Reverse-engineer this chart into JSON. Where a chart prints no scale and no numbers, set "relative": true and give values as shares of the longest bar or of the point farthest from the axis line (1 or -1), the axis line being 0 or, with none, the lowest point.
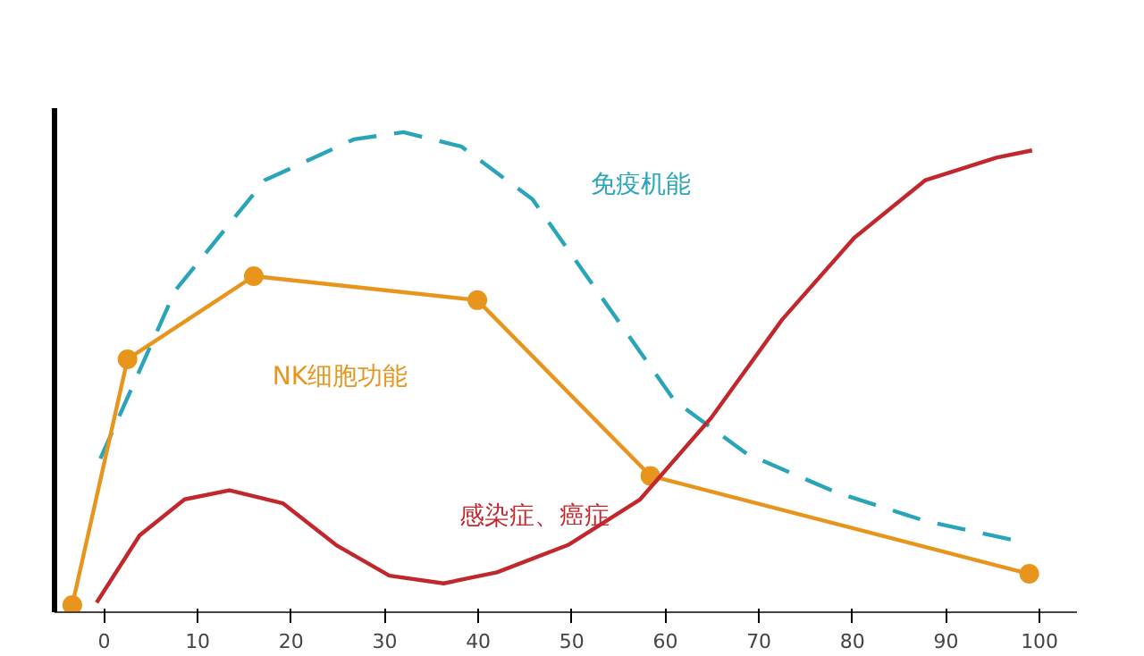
{
  "chart_data": {
    "type": "line",
    "relative": true,
    "xlim": [
      -5.3,
      104
    ],
    "xticks": [
      0,
      10,
      20,
      30,
      40,
      50,
      60,
      70,
      80,
      90,
      100
    ],
    "grid": false,
    "series": [
      {
        "name": "免疫机能",
        "color": "#2aa4b8",
        "line_style": "dashed",
        "marker": "none",
        "x": [
          -0.4,
          7.6,
          17.2,
          26.7,
          32,
          38.2,
          45.8,
          53.4,
          61,
          68.7,
          78.2,
          87.8,
          97.3
        ],
        "values": [
          0.32,
          0.67,
          0.9,
          0.985,
          1.0,
          0.97,
          0.86,
          0.65,
          0.44,
          0.33,
          0.25,
          0.19,
          0.15
        ]
      },
      {
        "name": "NK细胞功能",
        "color": "#e8951e",
        "line_style": "solid",
        "marker": "circle",
        "x": [
          -3.4,
          2.5,
          16,
          39.9,
          58.4,
          98.9
        ],
        "values": [
          0.015,
          0.527,
          0.7,
          0.65,
          0.284,
          0.08
        ]
      },
      {
        "name": "感染症、癌症",
        "color": "#c0282d",
        "line_style": "solid",
        "marker": "none",
        "x": [
          -0.8,
          3.8,
          8.6,
          13.4,
          19.1,
          24.8,
          30.5,
          36.3,
          42,
          49.6,
          57.3,
          64.9,
          72.5,
          80.2,
          87.8,
          95.4,
          99.2
        ],
        "values": [
          0.02,
          0.16,
          0.235,
          0.254,
          0.227,
          0.14,
          0.076,
          0.06,
          0.083,
          0.14,
          0.235,
          0.405,
          0.61,
          0.78,
          0.9,
          0.947,
          0.962
        ]
      }
    ]
  }
}
